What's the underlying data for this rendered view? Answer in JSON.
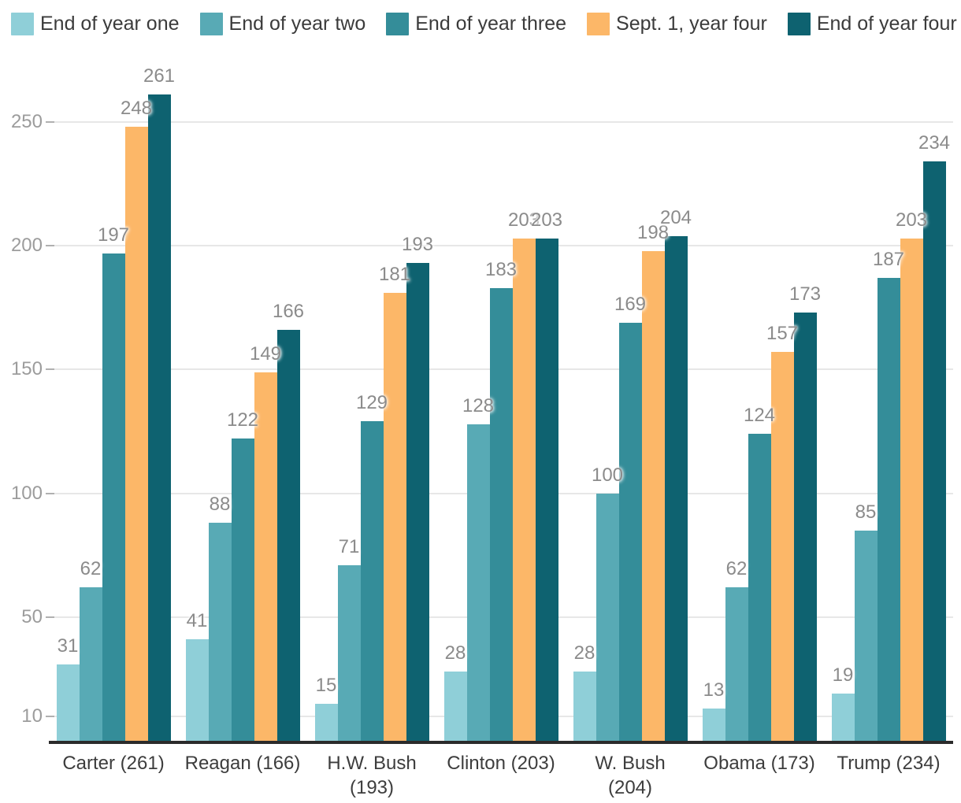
{
  "chart_data": {
    "type": "bar",
    "title": "",
    "categories": [
      "Carter (261)",
      "Reagan (166)",
      "H.W. Bush\n(193)",
      "Clinton (203)",
      "W. Bush\n(204)",
      "Obama (173)",
      "Trump (234)"
    ],
    "series": [
      {
        "name": "End of year one",
        "color": "#8fcfd8",
        "values": [
          31,
          41,
          15,
          28,
          28,
          13,
          19
        ]
      },
      {
        "name": "End of year two",
        "color": "#58aab5",
        "values": [
          62,
          88,
          71,
          128,
          100,
          62,
          85
        ]
      },
      {
        "name": "End of year three",
        "color": "#348d99",
        "values": [
          197,
          122,
          129,
          183,
          169,
          124,
          187
        ]
      },
      {
        "name": "Sept. 1, year four",
        "color": "#fcb768",
        "values": [
          248,
          149,
          181,
          203,
          198,
          157,
          203
        ]
      },
      {
        "name": "End of year four",
        "color": "#0e6270",
        "values": [
          261,
          166,
          193,
          203,
          204,
          173,
          234
        ]
      }
    ],
    "yticks": [
      10,
      50,
      100,
      150,
      200,
      250
    ],
    "ylim": [
      0,
      265
    ],
    "value_labels": true,
    "grid": "horizontal",
    "legend_position": "top"
  }
}
